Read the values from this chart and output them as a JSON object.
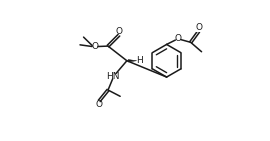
{
  "bg_color": "#ffffff",
  "line_color": "#1a1a1a",
  "line_width": 1.1,
  "font_size": 6.5,
  "fig_width": 2.7,
  "fig_height": 1.41,
  "dpi": 100,
  "xlim": [
    0,
    10
  ],
  "ylim": [
    0,
    3.7
  ]
}
